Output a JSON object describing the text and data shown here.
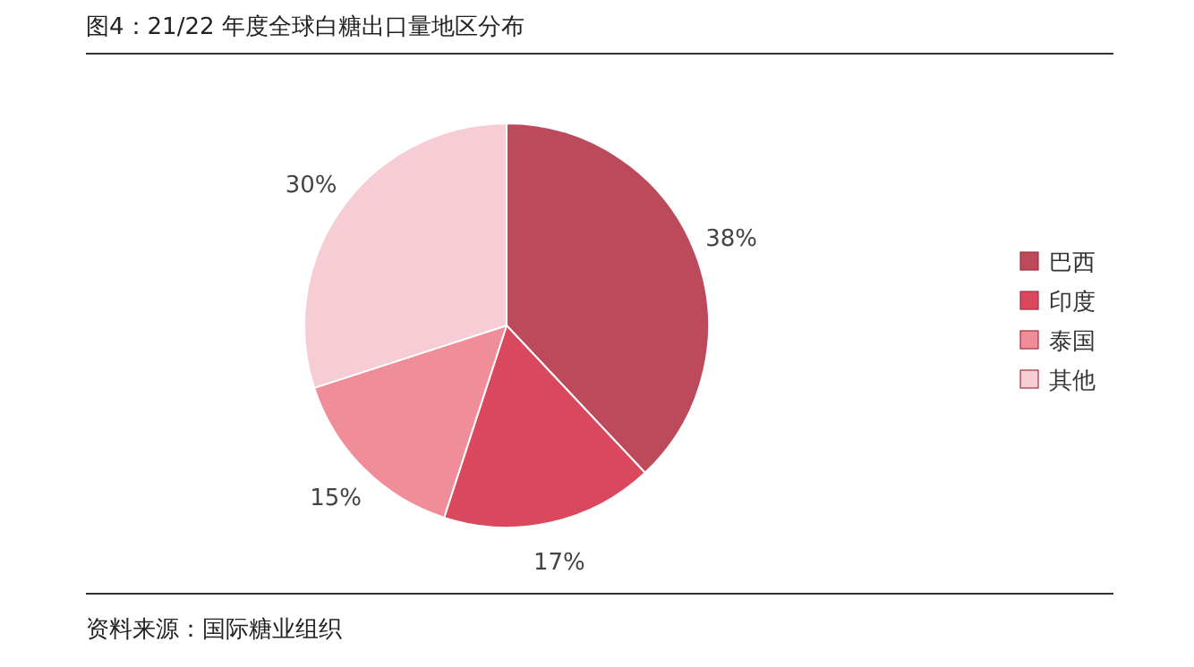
{
  "chart_data": {
    "type": "pie",
    "title": "图4：21/22 年度全球白糖出口量地区分布",
    "categories": [
      "巴西",
      "印度",
      "泰国",
      "其他"
    ],
    "values": [
      38,
      17,
      15,
      30
    ],
    "colors": [
      "#bd4a5a",
      "#d9485d",
      "#ef8d99",
      "#f6cdd4"
    ],
    "value_labels": [
      "38%",
      "17%",
      "15%",
      "30%"
    ],
    "legend": "right",
    "annotations": [
      "资料来源：国际糖业组织"
    ]
  }
}
